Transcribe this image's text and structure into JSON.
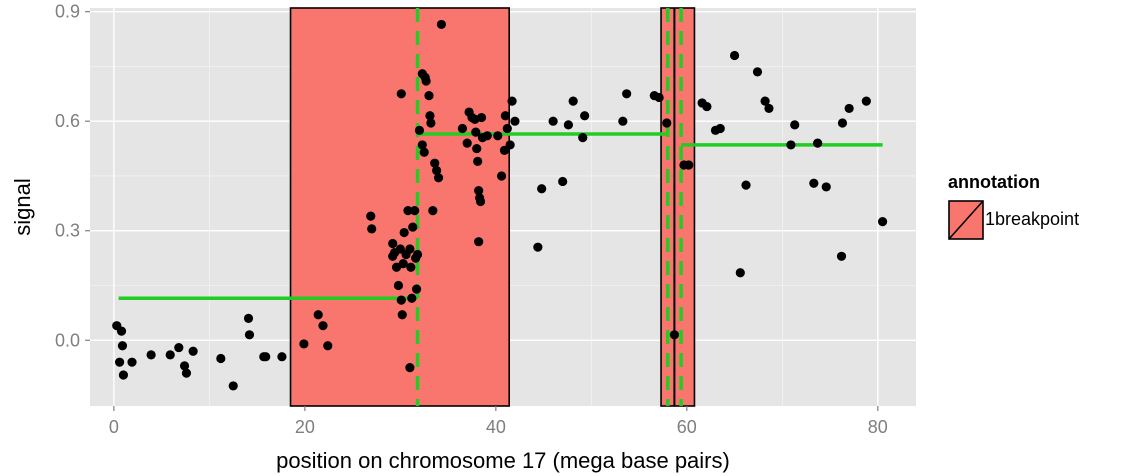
{
  "chart_data": {
    "type": "scatter",
    "xlabel": "position on chromosome 17 (mega base pairs)",
    "ylabel": "signal",
    "xlim": [
      -2.5,
      84
    ],
    "ylim": [
      -0.18,
      0.91
    ],
    "x_ticks": [
      0,
      20,
      40,
      60,
      80
    ],
    "y_ticks": [
      0.0,
      0.3,
      0.6,
      0.9
    ],
    "x_tick_labels": [
      "0",
      "20",
      "40",
      "60",
      "80"
    ],
    "y_tick_labels": [
      "0.0",
      "0.3",
      "0.6",
      "0.9"
    ],
    "grid": true,
    "legend": {
      "title": "annotation",
      "placement": "right",
      "entries": [
        {
          "label": "1breakpoint",
          "color": "#f8766d"
        }
      ]
    },
    "colors": {
      "panel": "#e5e5e5",
      "grid": "#ffffff",
      "points": "#000000",
      "annotation_fill": "#f8766d",
      "segment": "#22cc22",
      "tick_label": "#7f7f7f"
    },
    "annotation_regions": [
      {
        "label": "1breakpoint",
        "x_start": 18.5,
        "x_end": 41.4
      },
      {
        "label": "1breakpoint",
        "x_start": 57.3,
        "x_end": 60.8
      }
    ],
    "breakpoints_dashed": [
      31.8,
      58.0,
      59.4
    ],
    "solid_breakpoint": 58.7,
    "segments": [
      {
        "x_start": 0.5,
        "x_end": 31.8,
        "y": 0.115
      },
      {
        "x_start": 31.8,
        "x_end": 58.0,
        "y": 0.565
      },
      {
        "x_start": 58.0,
        "x_end": 59.4,
        "y": 0.015
      },
      {
        "x_start": 59.4,
        "x_end": 80.5,
        "y": 0.535
      }
    ],
    "points": [
      [
        0.3,
        0.04
      ],
      [
        0.6,
        -0.06
      ],
      [
        0.8,
        0.025
      ],
      [
        0.9,
        -0.015
      ],
      [
        1.0,
        -0.095
      ],
      [
        1.9,
        -0.06
      ],
      [
        3.9,
        -0.04
      ],
      [
        5.9,
        -0.04
      ],
      [
        6.8,
        -0.02
      ],
      [
        7.4,
        -0.07
      ],
      [
        7.6,
        -0.09
      ],
      [
        8.3,
        -0.03
      ],
      [
        11.2,
        -0.05
      ],
      [
        12.5,
        -0.125
      ],
      [
        14.1,
        0.06
      ],
      [
        14.2,
        0.015
      ],
      [
        15.7,
        -0.045
      ],
      [
        15.9,
        -0.045
      ],
      [
        17.6,
        -0.045
      ],
      [
        19.9,
        -0.01
      ],
      [
        21.4,
        0.07
      ],
      [
        21.9,
        0.04
      ],
      [
        22.4,
        -0.015
      ],
      [
        26.9,
        0.34
      ],
      [
        27.0,
        0.305
      ],
      [
        29.2,
        0.265
      ],
      [
        29.4,
        0.24
      ],
      [
        29.6,
        0.2
      ],
      [
        29.8,
        0.15
      ],
      [
        30.0,
        0.25
      ],
      [
        30.1,
        0.11
      ],
      [
        30.2,
        0.07
      ],
      [
        30.4,
        0.295
      ],
      [
        30.6,
        0.235
      ],
      [
        30.8,
        0.355
      ],
      [
        31.0,
        0.25
      ],
      [
        31.1,
        0.2
      ],
      [
        31.2,
        0.115
      ],
      [
        31.3,
        0.31
      ],
      [
        31.5,
        0.355
      ],
      [
        31.6,
        0.225
      ],
      [
        31.7,
        0.14
      ],
      [
        31.8,
        0.235
      ],
      [
        29.2,
        0.23
      ],
      [
        30.3,
        0.21
      ],
      [
        31.0,
        -0.075
      ],
      [
        30.1,
        0.675
      ],
      [
        32.3,
        0.73
      ],
      [
        32.6,
        0.72
      ],
      [
        32.7,
        0.71
      ],
      [
        33.0,
        0.67
      ],
      [
        33.1,
        0.615
      ],
      [
        33.2,
        0.595
      ],
      [
        33.4,
        0.355
      ],
      [
        33.6,
        0.485
      ],
      [
        33.8,
        0.465
      ],
      [
        34.0,
        0.445
      ],
      [
        34.3,
        0.865
      ],
      [
        32.0,
        0.575
      ],
      [
        32.3,
        0.535
      ],
      [
        32.5,
        0.515
      ],
      [
        36.5,
        0.58
      ],
      [
        37.0,
        0.54
      ],
      [
        37.2,
        0.625
      ],
      [
        37.5,
        0.61
      ],
      [
        37.8,
        0.605
      ],
      [
        37.9,
        0.57
      ],
      [
        38.0,
        0.525
      ],
      [
        38.1,
        0.49
      ],
      [
        38.2,
        0.41
      ],
      [
        38.3,
        0.39
      ],
      [
        38.4,
        0.38
      ],
      [
        38.5,
        0.61
      ],
      [
        38.2,
        0.27
      ],
      [
        38.6,
        0.555
      ],
      [
        39.1,
        0.56
      ],
      [
        40.2,
        0.56
      ],
      [
        40.6,
        0.45
      ],
      [
        40.9,
        0.52
      ],
      [
        41.0,
        0.615
      ],
      [
        41.2,
        0.58
      ],
      [
        41.5,
        0.535
      ],
      [
        41.7,
        0.655
      ],
      [
        42.0,
        0.6
      ],
      [
        44.4,
        0.255
      ],
      [
        44.8,
        0.415
      ],
      [
        46.0,
        0.6
      ],
      [
        47.0,
        0.435
      ],
      [
        47.6,
        0.59
      ],
      [
        48.1,
        0.655
      ],
      [
        49.1,
        0.555
      ],
      [
        49.3,
        0.615
      ],
      [
        53.3,
        0.6
      ],
      [
        53.7,
        0.675
      ],
      [
        56.6,
        0.67
      ],
      [
        57.1,
        0.665
      ],
      [
        57.9,
        0.595
      ],
      [
        59.7,
        0.48
      ],
      [
        60.2,
        0.48
      ],
      [
        61.6,
        0.65
      ],
      [
        62.1,
        0.64
      ],
      [
        63.0,
        0.575
      ],
      [
        63.5,
        0.58
      ],
      [
        65.0,
        0.78
      ],
      [
        65.6,
        0.185
      ],
      [
        66.2,
        0.425
      ],
      [
        67.4,
        0.735
      ],
      [
        68.2,
        0.655
      ],
      [
        68.6,
        0.635
      ],
      [
        70.9,
        0.535
      ],
      [
        71.3,
        0.59
      ],
      [
        73.3,
        0.43
      ],
      [
        73.7,
        0.54
      ],
      [
        74.6,
        0.42
      ],
      [
        76.2,
        0.23
      ],
      [
        76.3,
        0.595
      ],
      [
        77.0,
        0.635
      ],
      [
        78.8,
        0.655
      ],
      [
        80.5,
        0.325
      ],
      [
        58.7,
        0.015
      ]
    ]
  }
}
